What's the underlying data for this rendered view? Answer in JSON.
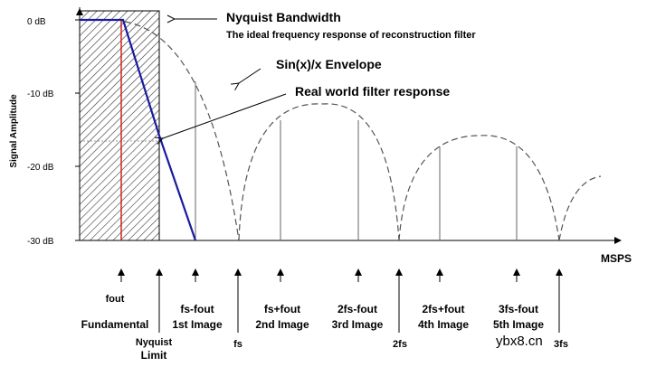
{
  "y_axis": {
    "title": "Signal Amplitude",
    "ticks": [
      "0 dB",
      "-10 dB",
      "-20 dB",
      "-30 dB"
    ]
  },
  "x_axis": {
    "unit_label": "MSPS"
  },
  "annotations": {
    "nyquist_title": "Nyquist Bandwidth",
    "nyquist_subtitle": "The ideal frequency response of reconstruction filter",
    "sinx_envelope": "Sin(x)/x Envelope",
    "real_filter": "Real world filter response"
  },
  "markers": [
    {
      "id": "fout",
      "lines": [
        "fout",
        "Fundamental"
      ]
    },
    {
      "id": "nyquist",
      "lines": [
        "Nyquist",
        "Limit"
      ]
    },
    {
      "id": "fs-fout",
      "lines": [
        "fs-fout",
        "1st Image"
      ]
    },
    {
      "id": "fs",
      "lines": [
        "fs"
      ]
    },
    {
      "id": "fs+fout",
      "lines": [
        "fs+fout",
        "2nd Image"
      ]
    },
    {
      "id": "2fs-fout",
      "lines": [
        "2fs-fout",
        "3rd Image"
      ]
    },
    {
      "id": "2fs",
      "lines": [
        "2fs"
      ]
    },
    {
      "id": "2fs+fout",
      "lines": [
        "2fs+fout",
        "4th Image"
      ]
    },
    {
      "id": "3fs-fout",
      "lines": [
        "3fs-fout",
        "5th Image"
      ]
    },
    {
      "id": "3fs",
      "lines": [
        "3fs"
      ]
    }
  ],
  "watermark": "ybx8.cn",
  "colors": {
    "fundamental_line": "#d02020",
    "filter_response": "#1a1aa0",
    "envelope": "#555555",
    "axis": "#000000"
  }
}
